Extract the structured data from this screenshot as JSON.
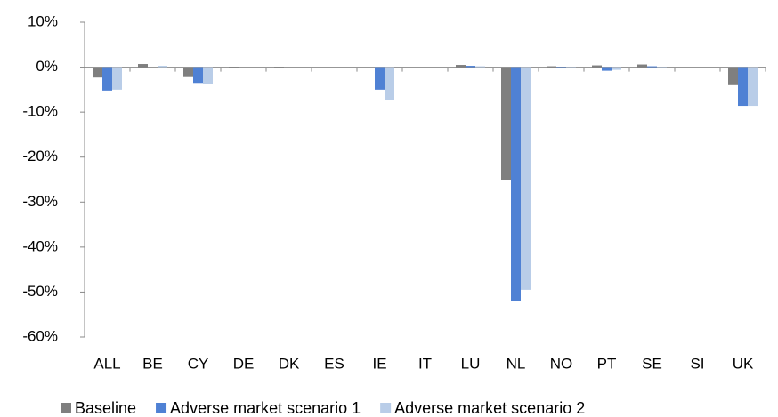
{
  "chart_data": {
    "type": "bar",
    "categories": [
      "ALL",
      "BE",
      "CY",
      "DE",
      "DK",
      "ES",
      "IE",
      "IT",
      "LU",
      "NL",
      "NO",
      "PT",
      "SE",
      "SI",
      "UK"
    ],
    "series": [
      {
        "name": "Baseline",
        "color": "#7f7f7f",
        "values": [
          -2.3,
          0.7,
          -2.2,
          0.1,
          0.1,
          0,
          0,
          0,
          0.5,
          -25,
          0.2,
          0.4,
          0.6,
          0,
          -4
        ]
      },
      {
        "name": "Adverse market scenario 1",
        "color": "#4f81d4",
        "values": [
          -5.2,
          0,
          -3.5,
          0,
          0,
          0,
          -5,
          0,
          0.3,
          -52,
          0.1,
          -0.8,
          0.2,
          0,
          -8.6
        ]
      },
      {
        "name": "Adverse market scenario 2",
        "color": "#b9cde8",
        "values": [
          -5,
          0.3,
          -3.7,
          0,
          0,
          0,
          -7.4,
          0,
          0.2,
          -49.5,
          0.1,
          -0.6,
          0.1,
          0,
          -8.6
        ]
      }
    ],
    "ylim": [
      -60,
      10
    ],
    "yticks": [
      {
        "value": 10,
        "label": "10%"
      },
      {
        "value": 0,
        "label": "0%"
      },
      {
        "value": -10,
        "label": "-10%"
      },
      {
        "value": -20,
        "label": "-20%"
      },
      {
        "value": -30,
        "label": "-30%"
      },
      {
        "value": -40,
        "label": "-40%"
      },
      {
        "value": -50,
        "label": "-50%"
      },
      {
        "value": -60,
        "label": "-60%"
      }
    ],
    "grid": false
  }
}
